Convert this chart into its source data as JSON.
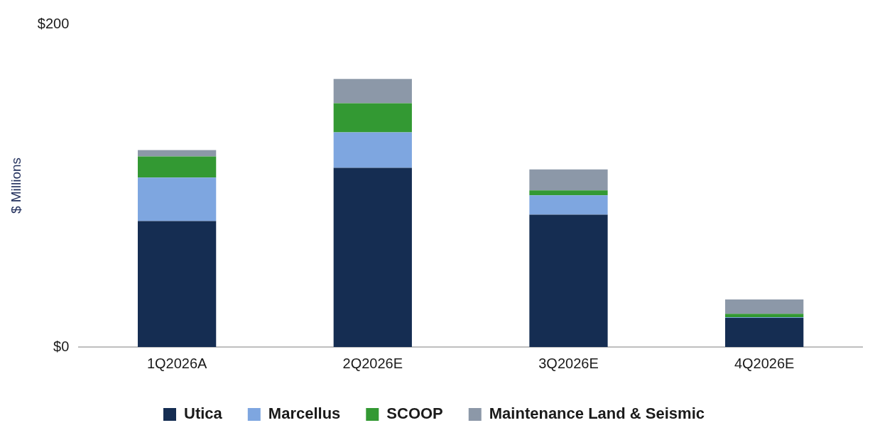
{
  "chart_data": {
    "type": "bar",
    "ylabel": "$ Millions",
    "categories": [
      "1Q2026A",
      "2Q2026E",
      "3Q2026E",
      "4Q2026E"
    ],
    "stacked": true,
    "ylim": [
      0,
      200
    ],
    "yticks": [
      {
        "value": 0,
        "label": "$0"
      },
      {
        "value": 200,
        "label": "$200"
      }
    ],
    "grid": false,
    "legend": "bottom",
    "series": [
      {
        "name": "Utica",
        "color": "#152d52",
        "values": [
          78,
          111,
          82,
          18
        ]
      },
      {
        "name": "Marcellus",
        "color": "#7ea6e0",
        "values": [
          27,
          22,
          12,
          0.5
        ]
      },
      {
        "name": "SCOOP",
        "color": "#339933",
        "values": [
          13,
          18,
          3,
          2
        ]
      },
      {
        "name": "Maintenance Land & Seismic",
        "color": "#8c98a8",
        "values": [
          4,
          15,
          13,
          9
        ]
      }
    ]
  }
}
